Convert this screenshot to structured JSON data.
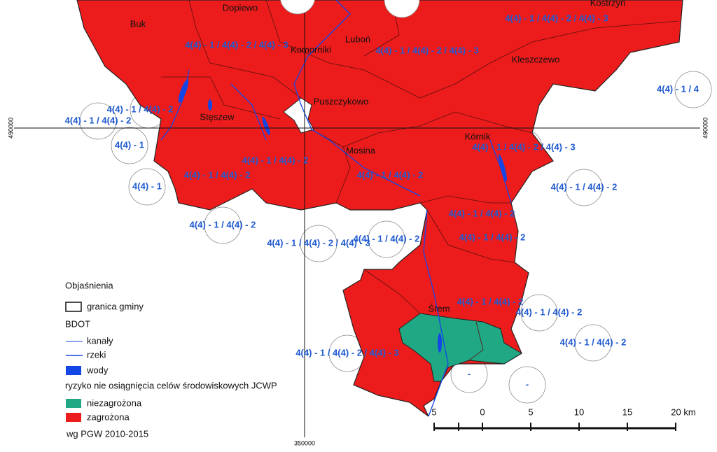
{
  "places": [
    "Dopiewo",
    "Kostrzyn",
    "Buk",
    "Luboń",
    "Komorniki",
    "Kleszczewo",
    "Puszczykowo",
    "Stęszew",
    "Kórnik",
    "Mosina",
    "Śrem"
  ],
  "zones": [
    {
      "label": "4(4) - 1 / 4(4) - 2 / 4(4) - 3"
    },
    {
      "label": "4(4) - 1 / 4(4) - 2 / 4(4) - 3"
    },
    {
      "label": "4(4) - 1 / 4(4) - 2 / 4(4) - 3"
    },
    {
      "label": "4(4) - 1 / 4"
    },
    {
      "label": "4(4) - 1 / 4(4) - 2"
    },
    {
      "label": "4(4) - 1 / 4(4) - 2"
    },
    {
      "label": "4(4) - 1"
    },
    {
      "label": "4(4) - 1 / 4(4) - 2 / 4(4) - 3"
    },
    {
      "label": "4(4) - 1 / 4(4) - 2"
    },
    {
      "label": "4(4) - 1 / 4(4) - 2"
    },
    {
      "label": "4(4) - 1 / 4(4) - 2"
    },
    {
      "label": "4(4) - 1"
    },
    {
      "label": "4(4) - 1 / 4(4) - 2"
    },
    {
      "label": "4(4) - 1 / 4(4) - 2"
    },
    {
      "label": "4(4) - 1 / 4(4) - 2"
    },
    {
      "label": "4(4) - 1 / 4(4) - 2 / 4(4) - 3"
    },
    {
      "label": "4(4) - 1 / 4(4) - 2"
    },
    {
      "label": "4(4) - 1 / 4(4) - 2"
    },
    {
      "label": "4(4) - 1 / 4(4) - 2"
    },
    {
      "label": "4(4) - 1 / 4(4) - 2"
    },
    {
      "label": "4(4) - 1 / 4(4) - 2"
    },
    {
      "label": "4(4) - 1 / 4(4) - 2 / 4(4) - 3"
    },
    {
      "label": "-"
    },
    {
      "label": "-"
    }
  ],
  "legend": {
    "title": "Objaśnienia",
    "boundary": "granica gminy",
    "group": "BDOT",
    "canals": "kanały",
    "rivers": "rzeki",
    "waters": "wody",
    "risk_title": "ryzyko nie osiągnięcia celów środowiskowych JCWP",
    "not_at_risk": "niezagrożona",
    "at_risk": "zagrożona",
    "source": "wg PGW 2010-2015"
  },
  "scale": {
    "labels": [
      "5",
      "0",
      "5",
      "10",
      "15",
      "20 km"
    ]
  },
  "coordinates": {
    "y_left": "490000",
    "y_right": "490000",
    "x_bottom": "350000"
  }
}
